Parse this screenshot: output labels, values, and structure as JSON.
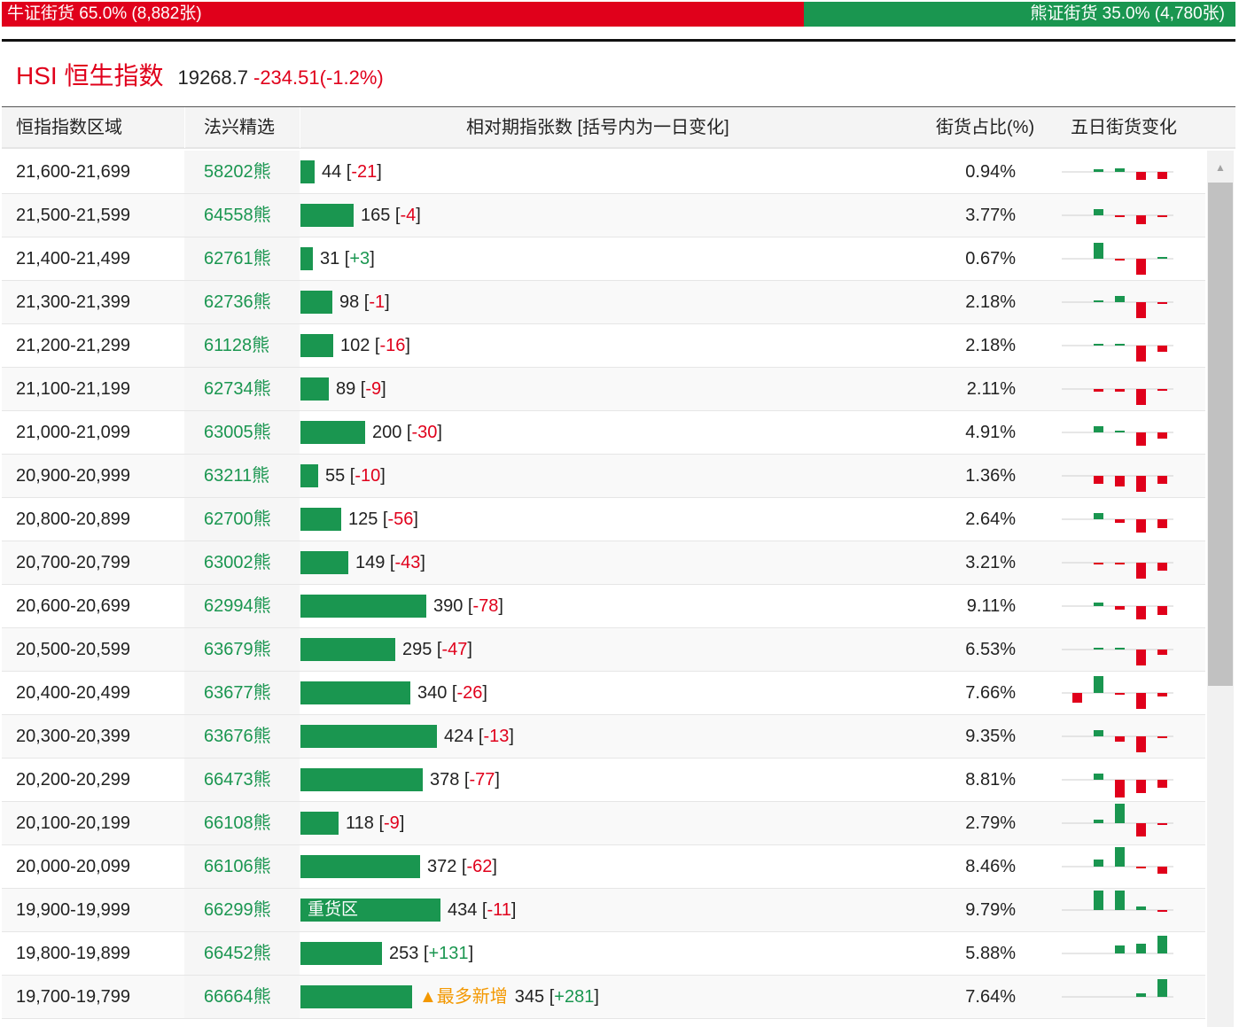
{
  "ratio": {
    "bull_label": "牛证街货 65.0% (8,882张)",
    "bear_label": "熊证街货 35.0% (4,780张)",
    "bull_share": 0.65,
    "colors": {
      "bull": "#e0001b",
      "bear": "#1a9650"
    }
  },
  "index": {
    "name": "HSI 恒生指数",
    "price": "19268.7",
    "change": "-234.51(-1.2%)"
  },
  "table": {
    "headers": {
      "range": "恒指指数区域",
      "pick": "法兴精选",
      "count": "相对期指张数 [括号内为一日变化]",
      "share": "街货占比(%)",
      "five_day": "五日街货变化"
    },
    "max_contracts": 434,
    "rows": [
      {
        "range": "21,600-21,699",
        "code": "58202熊",
        "contracts": 44,
        "change": "-21",
        "pct": "0.94%",
        "five": [
          0.15,
          0.2,
          -0.4,
          -0.35
        ],
        "five0": 0
      },
      {
        "range": "21,500-21,599",
        "code": "64558熊",
        "contracts": 165,
        "change": "-4",
        "pct": "3.77%",
        "five": [
          0.3,
          -0.1,
          -0.45,
          -0.1
        ],
        "five0": 0
      },
      {
        "range": "21,400-21,499",
        "code": "62761熊",
        "contracts": 31,
        "change": "+3",
        "pct": "0.67%",
        "five": [
          0.8,
          -0.1,
          -0.8,
          0.1
        ],
        "five0": 0
      },
      {
        "range": "21,300-21,399",
        "code": "62736熊",
        "contracts": 98,
        "change": "-1",
        "pct": "2.18%",
        "five": [
          0.04,
          0.3,
          -0.8,
          -0.05
        ],
        "five0": 0
      },
      {
        "range": "21,200-21,299",
        "code": "61128熊",
        "contracts": 102,
        "change": "-16",
        "pct": "2.18%",
        "five": [
          0.04,
          0.1,
          -0.8,
          -0.3
        ],
        "five0": 0
      },
      {
        "range": "21,100-21,199",
        "code": "62734熊",
        "contracts": 89,
        "change": "-9",
        "pct": "2.11%",
        "five": [
          -0.15,
          -0.15,
          -0.8,
          -0.1
        ],
        "five0": 0
      },
      {
        "range": "21,000-21,099",
        "code": "63005熊",
        "contracts": 200,
        "change": "-30",
        "pct": "4.91%",
        "five": [
          0.3,
          0.05,
          -0.7,
          -0.3
        ],
        "five0": 0
      },
      {
        "range": "20,900-20,999",
        "code": "63211熊",
        "contracts": 55,
        "change": "-10",
        "pct": "1.36%",
        "five": [
          -0.4,
          -0.55,
          -0.8,
          -0.4
        ],
        "five0": 0
      },
      {
        "range": "20,800-20,899",
        "code": "62700熊",
        "contracts": 125,
        "change": "-56",
        "pct": "2.64%",
        "five": [
          0.3,
          -0.2,
          -0.7,
          -0.45
        ],
        "five0": 0
      },
      {
        "range": "20,700-20,799",
        "code": "63002熊",
        "contracts": 149,
        "change": "-43",
        "pct": "3.21%",
        "five": [
          -0.05,
          -0.05,
          -0.8,
          -0.4
        ],
        "five0": 0
      },
      {
        "range": "20,600-20,699",
        "code": "62994熊",
        "contracts": 390,
        "change": "-78",
        "pct": "9.11%",
        "five": [
          0.2,
          -0.2,
          -0.7,
          -0.45
        ],
        "five0": 0
      },
      {
        "range": "20,500-20,599",
        "code": "63679熊",
        "contracts": 295,
        "change": "-47",
        "pct": "6.53%",
        "five": [
          0.1,
          0.05,
          -0.8,
          -0.25
        ],
        "five0": 0
      },
      {
        "range": "20,400-20,499",
        "code": "63677熊",
        "contracts": 340,
        "change": "-26",
        "pct": "7.66%",
        "five": [
          0.85,
          -0.05,
          -0.8,
          -0.2
        ],
        "five0": -0.5
      },
      {
        "range": "20,300-20,399",
        "code": "63676熊",
        "contracts": 424,
        "change": "-13",
        "pct": "9.35%",
        "five": [
          0.3,
          -0.25,
          -0.8,
          -0.05
        ],
        "five0": 0
      },
      {
        "range": "20,200-20,299",
        "code": "66473熊",
        "contracts": 378,
        "change": "-77",
        "pct": "8.81%",
        "five": [
          0.3,
          -0.9,
          -0.7,
          -0.4
        ],
        "five0": 0
      },
      {
        "range": "20,100-20,199",
        "code": "66108熊",
        "contracts": 118,
        "change": "-9",
        "pct": "2.79%",
        "five": [
          0.2,
          1.0,
          -0.7,
          -0.05
        ],
        "five0": 0
      },
      {
        "range": "20,000-20,099",
        "code": "66106熊",
        "contracts": 372,
        "change": "-62",
        "pct": "8.46%",
        "five": [
          0.35,
          1.0,
          -0.05,
          -0.35
        ],
        "five0": 0
      },
      {
        "range": "19,900-19,999",
        "code": "66299熊",
        "contracts": 434,
        "change": "-11",
        "pct": "9.79%",
        "five": [
          1.0,
          1.0,
          0.2,
          -0.05
        ],
        "five0": 0,
        "bar_tag": "重货区"
      },
      {
        "range": "19,800-19,899",
        "code": "66452熊",
        "contracts": 253,
        "change": "+131",
        "pct": "5.88%",
        "five": [
          0,
          0.4,
          0.5,
          0.9
        ],
        "five0": 0
      },
      {
        "range": "19,700-19,799",
        "code": "66664熊",
        "contracts": 345,
        "change": "+281",
        "pct": "7.64%",
        "five": [
          0,
          0,
          0.2,
          0.9
        ],
        "five0": 0,
        "note": "▲最多新增"
      }
    ]
  }
}
